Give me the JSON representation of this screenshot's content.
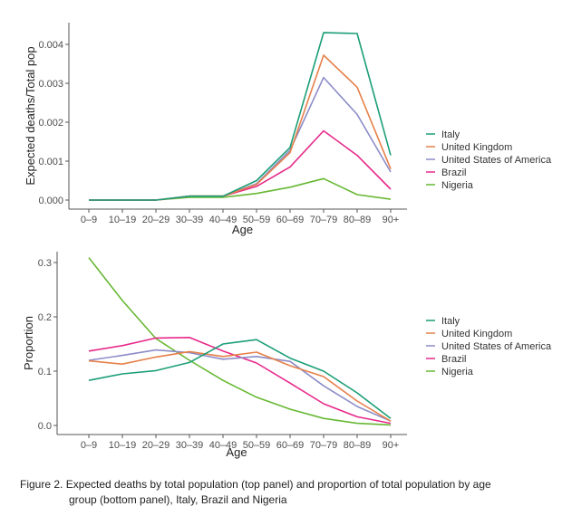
{
  "chart_data": [
    {
      "type": "line",
      "panel": "top",
      "title": "",
      "xlabel": "Age",
      "ylabel": "Expected deaths/Total pop",
      "categories": [
        "0–9",
        "10–19",
        "20–29",
        "30–39",
        "40–49",
        "50–59",
        "60–69",
        "70–79",
        "80–89",
        "90+"
      ],
      "yticks": [
        "0.000",
        "0.001",
        "0.002",
        "0.003",
        "0.004"
      ],
      "ytick_values": [
        0,
        0.001,
        0.002,
        0.003,
        0.004
      ],
      "ylim": [
        -0.0002,
        0.0045
      ],
      "grid": false,
      "legend": "right",
      "series": [
        {
          "name": "Italy",
          "color": "#1b9e77",
          "values": [
            0,
            0,
            0,
            0.0001,
            0.0001,
            0.0005,
            0.00135,
            0.0043,
            0.00428,
            0.00115
          ]
        },
        {
          "name": "United Kingdom",
          "color": "#e6804a",
          "values": [
            0,
            0,
            0,
            0.0001,
            0.0001,
            0.0004,
            0.00122,
            0.00372,
            0.0029,
            0.0008
          ]
        },
        {
          "name": "United States of America",
          "color": "#8c8cc8",
          "values": [
            0,
            0,
            0,
            0.0001,
            0.0001,
            0.00042,
            0.00128,
            0.00315,
            0.0022,
            0.00072
          ]
        },
        {
          "name": "Brazil",
          "color": "#e7298a",
          "values": [
            0,
            0,
            0,
            0.0001,
            0.0001,
            0.00035,
            0.00085,
            0.00178,
            0.00115,
            0.00028
          ]
        },
        {
          "name": "Nigeria",
          "color": "#66b833",
          "values": [
            0,
            0,
            0,
            7e-05,
            7e-05,
            0.00017,
            0.00033,
            0.00055,
            0.00014,
            2e-05
          ]
        }
      ]
    },
    {
      "type": "line",
      "panel": "bottom",
      "title": "",
      "xlabel": "Age",
      "ylabel": "Proportion",
      "categories": [
        "0–9",
        "10–19",
        "20–29",
        "30–39",
        "40–49",
        "50–59",
        "60–69",
        "70–79",
        "80–89",
        "90+"
      ],
      "yticks": [
        "0.0",
        "0.1",
        "0.2",
        "0.3"
      ],
      "ytick_values": [
        0,
        0.1,
        0.2,
        0.3
      ],
      "ylim": [
        -0.005,
        0.32
      ],
      "grid": false,
      "legend": "right",
      "series": [
        {
          "name": "Italy",
          "color": "#1b9e77",
          "values": [
            0.083,
            0.095,
            0.101,
            0.116,
            0.15,
            0.158,
            0.124,
            0.1,
            0.06,
            0.013
          ]
        },
        {
          "name": "United Kingdom",
          "color": "#e6804a",
          "values": [
            0.119,
            0.113,
            0.126,
            0.136,
            0.127,
            0.135,
            0.11,
            0.09,
            0.045,
            0.008
          ]
        },
        {
          "name": "United States of America",
          "color": "#8c8cc8",
          "values": [
            0.12,
            0.129,
            0.139,
            0.134,
            0.122,
            0.127,
            0.118,
            0.073,
            0.035,
            0.008
          ]
        },
        {
          "name": "Brazil",
          "color": "#e7298a",
          "values": [
            0.137,
            0.147,
            0.161,
            0.162,
            0.137,
            0.115,
            0.078,
            0.04,
            0.016,
            0.004
          ]
        },
        {
          "name": "Nigeria",
          "color": "#66b833",
          "values": [
            0.309,
            0.23,
            0.16,
            0.12,
            0.083,
            0.052,
            0.03,
            0.013,
            0.004,
            0.001
          ]
        }
      ]
    }
  ],
  "caption": {
    "line1": "Figure 2. Expected deaths by total population (top panel) and proportion of total population by age",
    "line2": "group (bottom panel), Italy, Brazil and Nigeria"
  }
}
